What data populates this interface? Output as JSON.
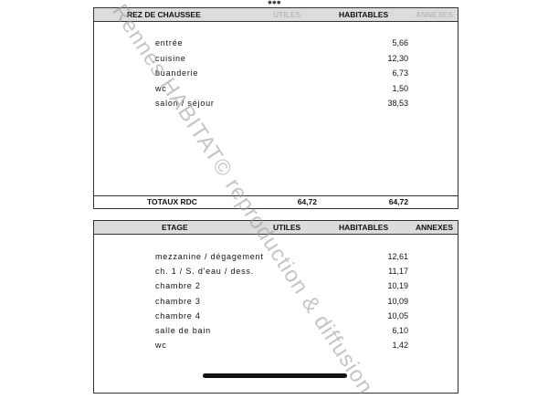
{
  "rdc": {
    "header": {
      "title": "REZ DE CHAUSSEE",
      "utiles": "UTILES",
      "habitables": "HABITABLES",
      "annexes": "ANNEXES"
    },
    "rows": [
      [
        "entrée",
        "5,66"
      ],
      [
        "cuisine",
        "12,30"
      ],
      [
        "buanderie",
        "6,73"
      ],
      [
        "wc",
        "1,50"
      ],
      [
        "salon / séjour",
        "38,53"
      ]
    ],
    "total": {
      "label": "TOTAUX RDC",
      "utiles": "64,72",
      "habitables": "64,72"
    }
  },
  "etage": {
    "header": {
      "title": "ETAGE",
      "utiles": "UTILES",
      "habitables": "HABITABLES",
      "annexes": "ANNEXES"
    },
    "rows": [
      [
        "mezzanine / dégagement",
        "12,61"
      ],
      [
        "ch. 1 / S. d'eau / dess.",
        "11,17"
      ],
      [
        "chambre 2",
        "10,19"
      ],
      [
        "chambre 3",
        "10,09"
      ],
      [
        "chambre 4",
        "10,05"
      ],
      [
        "salle de bain",
        "6,10"
      ],
      [
        "wc",
        "1,42"
      ]
    ]
  },
  "watermark": "Rennes HABITAT© reproduction & diffusion"
}
